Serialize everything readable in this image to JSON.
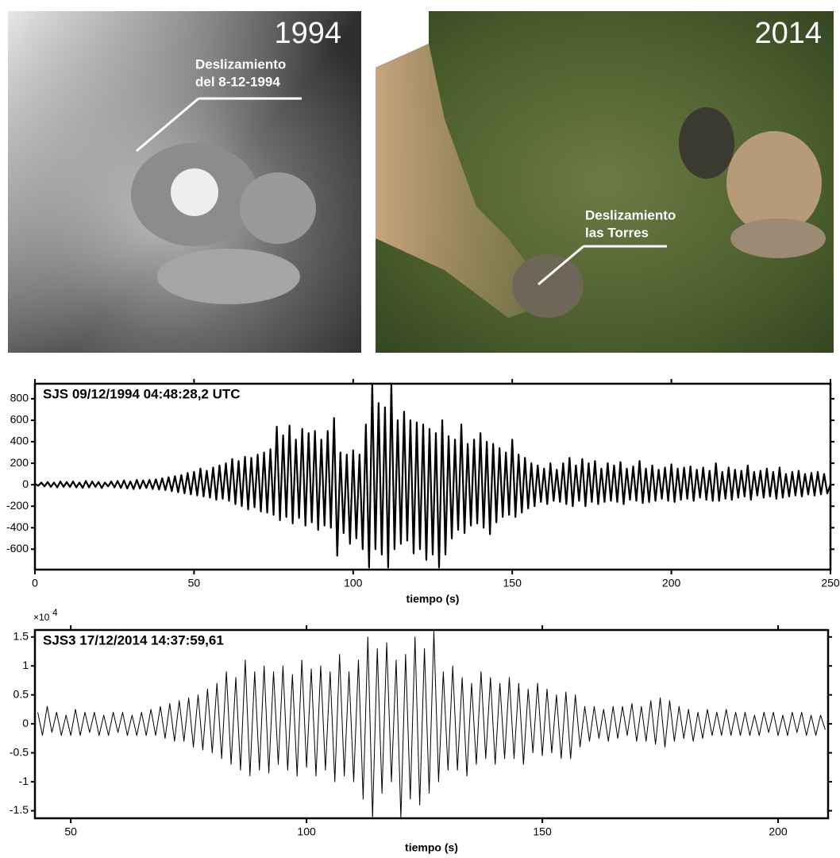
{
  "photos": [
    {
      "year": "1994",
      "annotation": [
        "Deslizamiento",
        "del 8-12-1994"
      ]
    },
    {
      "year": "2014",
      "annotation": [
        "Deslizamiento",
        "las Torres"
      ]
    }
  ],
  "chart_data": [
    {
      "type": "line",
      "label": "SJS 09/12/1994  04:48:28,2 UTC",
      "xlabel": "tiempo (s)",
      "color": "#000000",
      "xlim": [
        0,
        250
      ],
      "ylim": [
        -790,
        940
      ],
      "xticks": [
        0,
        50,
        100,
        150,
        200,
        250
      ],
      "yticks": [
        -600,
        -400,
        -200,
        0,
        200,
        400,
        600,
        800
      ],
      "x": [
        0,
        1,
        2,
        3,
        4,
        5,
        6,
        7,
        8,
        9,
        10,
        11,
        12,
        13,
        14,
        15,
        16,
        17,
        18,
        19,
        20,
        21,
        22,
        23,
        24,
        25,
        26,
        27,
        28,
        29,
        30,
        31,
        32,
        33,
        34,
        35,
        36,
        37,
        38,
        39,
        40,
        41,
        42,
        43,
        44,
        45,
        46,
        47,
        48,
        49,
        50,
        51,
        52,
        53,
        54,
        55,
        56,
        57,
        58,
        59,
        60,
        61,
        62,
        63,
        64,
        65,
        66,
        67,
        68,
        69,
        70,
        71,
        72,
        73,
        74,
        75,
        76,
        77,
        78,
        79,
        80,
        81,
        82,
        83,
        84,
        85,
        86,
        87,
        88,
        89,
        90,
        91,
        92,
        93,
        94,
        95,
        96,
        97,
        98,
        99,
        100,
        101,
        102,
        103,
        104,
        105,
        106,
        107,
        108,
        109,
        110,
        111,
        112,
        113,
        114,
        115,
        116,
        117,
        118,
        119,
        120,
        121,
        122,
        123,
        124,
        125,
        126,
        127,
        128,
        129,
        130,
        131,
        132,
        133,
        134,
        135,
        136,
        137,
        138,
        139,
        140,
        141,
        142,
        143,
        144,
        145,
        146,
        147,
        148,
        149,
        150,
        151,
        152,
        153,
        154,
        155,
        156,
        157,
        158,
        159,
        160,
        161,
        162,
        163,
        164,
        165,
        166,
        167,
        168,
        169,
        170,
        171,
        172,
        173,
        174,
        175,
        176,
        177,
        178,
        179,
        180,
        181,
        182,
        183,
        184,
        185,
        186,
        187,
        188,
        189,
        190,
        191,
        192,
        193,
        194,
        195,
        196,
        197,
        198,
        199,
        200,
        201,
        202,
        203,
        204,
        205,
        206,
        207,
        208,
        209,
        210,
        211,
        212,
        213,
        214,
        215,
        216,
        217,
        218,
        219,
        220,
        221,
        222,
        223,
        224,
        225,
        226,
        227,
        228,
        229,
        230,
        231,
        232,
        233,
        234,
        235,
        236,
        237,
        238,
        239,
        240,
        241,
        242,
        243,
        244,
        245,
        246,
        247,
        248,
        249,
        250
      ],
      "values": [
        10,
        -10,
        20,
        -15,
        25,
        -20,
        20,
        -25,
        30,
        -20,
        25,
        -20,
        30,
        -25,
        20,
        -30,
        35,
        -25,
        30,
        -20,
        25,
        -30,
        20,
        -15,
        30,
        -25,
        35,
        -30,
        40,
        -35,
        30,
        -40,
        45,
        -35,
        40,
        -30,
        45,
        -40,
        50,
        -45,
        60,
        -50,
        70,
        -60,
        80,
        -70,
        90,
        -80,
        110,
        -90,
        120,
        -100,
        150,
        -110,
        130,
        -120,
        160,
        -140,
        180,
        -130,
        200,
        -150,
        240,
        -180,
        220,
        -200,
        260,
        -230,
        250,
        -210,
        280,
        -250,
        300,
        -260,
        330,
        -280,
        540,
        -330,
        460,
        -300,
        550,
        -360,
        420,
        -310,
        520,
        -380,
        480,
        -350,
        500,
        -420,
        420,
        -380,
        500,
        -400,
        620,
        -660,
        300,
        -450,
        280,
        -550,
        320,
        -500,
        280,
        -600,
        560,
        -770,
        930,
        -600,
        760,
        -650,
        720,
        -770,
        930,
        -600,
        600,
        -550,
        680,
        -520,
        600,
        -640,
        580,
        -600,
        560,
        -700,
        520,
        -650,
        480,
        -770,
        600,
        -650,
        450,
        -500,
        420,
        -420,
        560,
        -450,
        380,
        -380,
        420,
        -360,
        480,
        -400,
        400,
        -460,
        380,
        -350,
        340,
        -300,
        300,
        -280,
        420,
        -300,
        280,
        -260,
        250,
        -220,
        200,
        -200,
        180,
        -160,
        150,
        -180,
        200,
        -150,
        140,
        -160,
        200,
        -180,
        250,
        -200,
        180,
        -150,
        240,
        -200,
        200,
        -160,
        220,
        -180,
        150,
        -160,
        200,
        -150,
        180,
        -160,
        210,
        -180,
        150,
        -140,
        170,
        -150,
        220,
        -170,
        150,
        -160,
        180,
        -150,
        140,
        -130,
        160,
        -150,
        190,
        -160,
        150,
        -140,
        160,
        -130,
        170,
        -150,
        140,
        -120,
        160,
        -140,
        130,
        -150,
        200,
        -150,
        120,
        -130,
        160,
        -140,
        140,
        -120,
        130,
        -110,
        180,
        -140,
        120,
        -100,
        130,
        -120,
        150,
        -110,
        120,
        -130,
        160,
        -120,
        100,
        -110,
        120,
        -100,
        130,
        -110,
        100,
        -90,
        110,
        -100,
        120,
        -90,
        100,
        -80,
        0
      ]
    },
    {
      "type": "line",
      "label": "SJS3 17/12/2014  14:37:59,61",
      "xlabel": "tiempo (s)",
      "color": "#000000",
      "y_scale_label": [
        "×10",
        "4"
      ],
      "xlim": [
        42.4,
        210.6
      ],
      "ylim": [
        -1.63,
        1.62
      ],
      "xticks": [
        50,
        100,
        150,
        200
      ],
      "yticks": [
        -1.5,
        -1,
        -0.5,
        0,
        0.5,
        1,
        1.5
      ],
      "x": [
        43,
        44,
        45,
        46,
        47,
        48,
        49,
        50,
        51,
        52,
        53,
        54,
        55,
        56,
        57,
        58,
        59,
        60,
        61,
        62,
        63,
        64,
        65,
        66,
        67,
        68,
        69,
        70,
        71,
        72,
        73,
        74,
        75,
        76,
        77,
        78,
        79,
        80,
        81,
        82,
        83,
        84,
        85,
        86,
        87,
        88,
        89,
        90,
        91,
        92,
        93,
        94,
        95,
        96,
        97,
        98,
        99,
        100,
        101,
        102,
        103,
        104,
        105,
        106,
        107,
        108,
        109,
        110,
        111,
        112,
        113,
        114,
        115,
        116,
        117,
        118,
        119,
        120,
        121,
        122,
        123,
        124,
        125,
        126,
        127,
        128,
        129,
        130,
        131,
        132,
        133,
        134,
        135,
        136,
        137,
        138,
        139,
        140,
        141,
        142,
        143,
        144,
        145,
        146,
        147,
        148,
        149,
        150,
        151,
        152,
        153,
        154,
        155,
        156,
        157,
        158,
        159,
        160,
        161,
        162,
        163,
        164,
        165,
        166,
        167,
        168,
        169,
        170,
        171,
        172,
        173,
        174,
        175,
        176,
        177,
        178,
        179,
        180,
        181,
        182,
        183,
        184,
        185,
        186,
        187,
        188,
        189,
        190,
        191,
        192,
        193,
        194,
        195,
        196,
        197,
        198,
        199,
        200,
        201,
        202,
        203,
        204,
        205,
        206,
        207,
        208,
        209,
        210
      ],
      "values": [
        0.2,
        -0.2,
        0.3,
        -0.15,
        0.2,
        -0.2,
        0.15,
        -0.2,
        0.25,
        -0.2,
        0.2,
        -0.15,
        0.2,
        -0.2,
        0.15,
        -0.2,
        0.2,
        -0.15,
        0.2,
        -0.2,
        0.15,
        -0.2,
        0.2,
        -0.2,
        0.25,
        -0.2,
        0.3,
        -0.25,
        0.35,
        -0.3,
        0.4,
        -0.3,
        0.45,
        -0.4,
        0.5,
        -0.45,
        0.6,
        -0.5,
        0.7,
        -0.6,
        0.9,
        -0.7,
        0.8,
        -0.8,
        1.1,
        -0.9,
        0.9,
        -0.8,
        1.0,
        -0.85,
        0.9,
        -0.7,
        1.0,
        -0.8,
        0.85,
        -0.9,
        1.1,
        -0.75,
        0.95,
        -0.9,
        1.0,
        -0.8,
        0.9,
        -1.0,
        1.2,
        -0.9,
        0.9,
        -1.0,
        1.1,
        -1.3,
        1.5,
        -1.63,
        1.3,
        -1.2,
        1.4,
        -1.0,
        1.1,
        -1.63,
        1.2,
        -1.3,
        1.5,
        -1.4,
        1.3,
        -1.2,
        1.6,
        -1.0,
        0.9,
        -0.8,
        1.0,
        -0.8,
        0.8,
        -0.9,
        0.7,
        -0.7,
        0.9,
        -0.6,
        0.8,
        -0.7,
        0.7,
        -0.6,
        0.8,
        -0.6,
        0.7,
        -0.7,
        0.6,
        -0.5,
        0.7,
        -0.55,
        0.6,
        -0.5,
        0.5,
        -0.6,
        0.55,
        -0.6,
        0.5,
        -0.4,
        0.3,
        -0.3,
        0.3,
        -0.25,
        0.25,
        -0.3,
        0.3,
        -0.25,
        0.3,
        -0.2,
        0.35,
        -0.3,
        0.3,
        -0.3,
        0.4,
        -0.35,
        0.45,
        -0.4,
        0.4,
        -0.3,
        0.3,
        -0.25,
        0.25,
        -0.3,
        0.2,
        -0.25,
        0.25,
        -0.2,
        0.2,
        -0.2,
        0.25,
        -0.2,
        0.2,
        -0.2,
        0.2,
        -0.2,
        0.15,
        -0.2,
        0.2,
        -0.15,
        0.2,
        -0.2,
        0.15,
        -0.2,
        0.2,
        -0.15,
        0.2,
        -0.2,
        0.15,
        -0.2,
        0.15,
        -0.1
      ]
    }
  ]
}
